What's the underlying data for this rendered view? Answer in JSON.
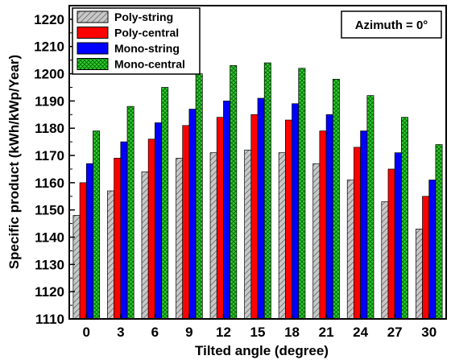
{
  "chart_data": {
    "type": "bar",
    "xlabel": "Tilted angle (degree)",
    "ylabel": "Specific product (kWh/kWp/Year)",
    "annotation": "Azimuth = 0°",
    "categories": [
      "0",
      "3",
      "6",
      "9",
      "12",
      "15",
      "18",
      "21",
      "24",
      "27",
      "30"
    ],
    "ylim": [
      1110,
      1225
    ],
    "yticks": [
      1110,
      1120,
      1130,
      1140,
      1150,
      1160,
      1170,
      1180,
      1190,
      1200,
      1210,
      1220
    ],
    "legend_position": "top-left",
    "grid": false,
    "series": [
      {
        "name": "Poly-string",
        "color": "#c8c8c8",
        "pattern": "diagonal-hatch",
        "values": [
          1148,
          1157,
          1164,
          1169,
          1171,
          1172,
          1171,
          1167,
          1161,
          1153,
          1143
        ]
      },
      {
        "name": "Poly-central",
        "color": "#ff0000",
        "pattern": "solid",
        "values": [
          1160,
          1169,
          1176,
          1181,
          1184,
          1185,
          1183,
          1179,
          1173,
          1165,
          1155
        ]
      },
      {
        "name": "Mono-string",
        "color": "#0000ff",
        "pattern": "solid",
        "values": [
          1167,
          1175,
          1182,
          1187,
          1190,
          1191,
          1189,
          1185,
          1179,
          1171,
          1161
        ]
      },
      {
        "name": "Mono-central",
        "color": "#33cc33",
        "pattern": "crosshatch",
        "values": [
          1179,
          1188,
          1195,
          1200,
          1203,
          1204,
          1202,
          1198,
          1192,
          1184,
          1174
        ]
      }
    ]
  }
}
